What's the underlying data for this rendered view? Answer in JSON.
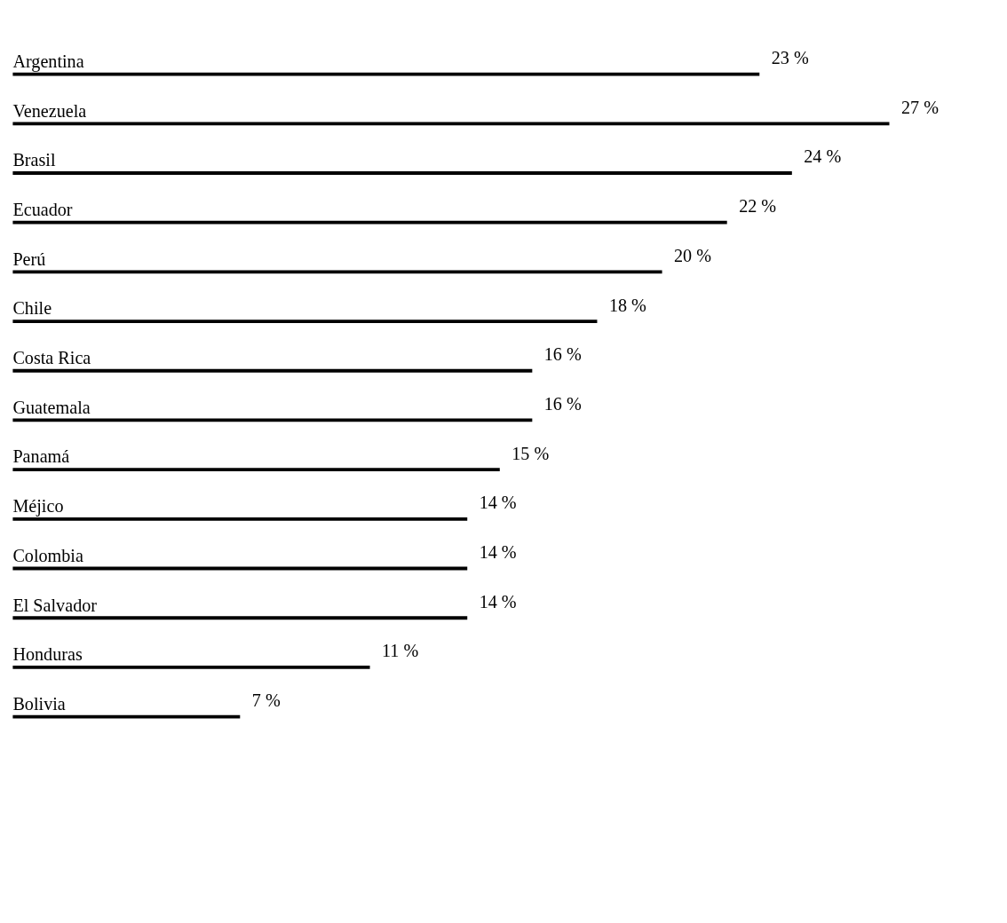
{
  "chart_data": {
    "type": "bar",
    "orientation": "horizontal",
    "categories": [
      "Argentina",
      "Venezuela",
      "Brasil",
      "Ecuador",
      "Perú",
      "Chile",
      "Costa Rica",
      "Guatemala",
      "Panamá",
      "Méjico",
      "Colombia",
      "El Salvador",
      "Honduras",
      "Bolivia"
    ],
    "values": [
      23,
      27,
      24,
      22,
      20,
      18,
      16,
      16,
      15,
      14,
      14,
      14,
      11,
      7
    ],
    "value_labels": [
      "23 %",
      "27 %",
      "24 %",
      "22 %",
      "20 %",
      "18 %",
      "16 %",
      "16 %",
      "15 %",
      "14 %",
      "14 %",
      "14 %",
      "11 %",
      "7 %"
    ],
    "color": "#000000"
  }
}
